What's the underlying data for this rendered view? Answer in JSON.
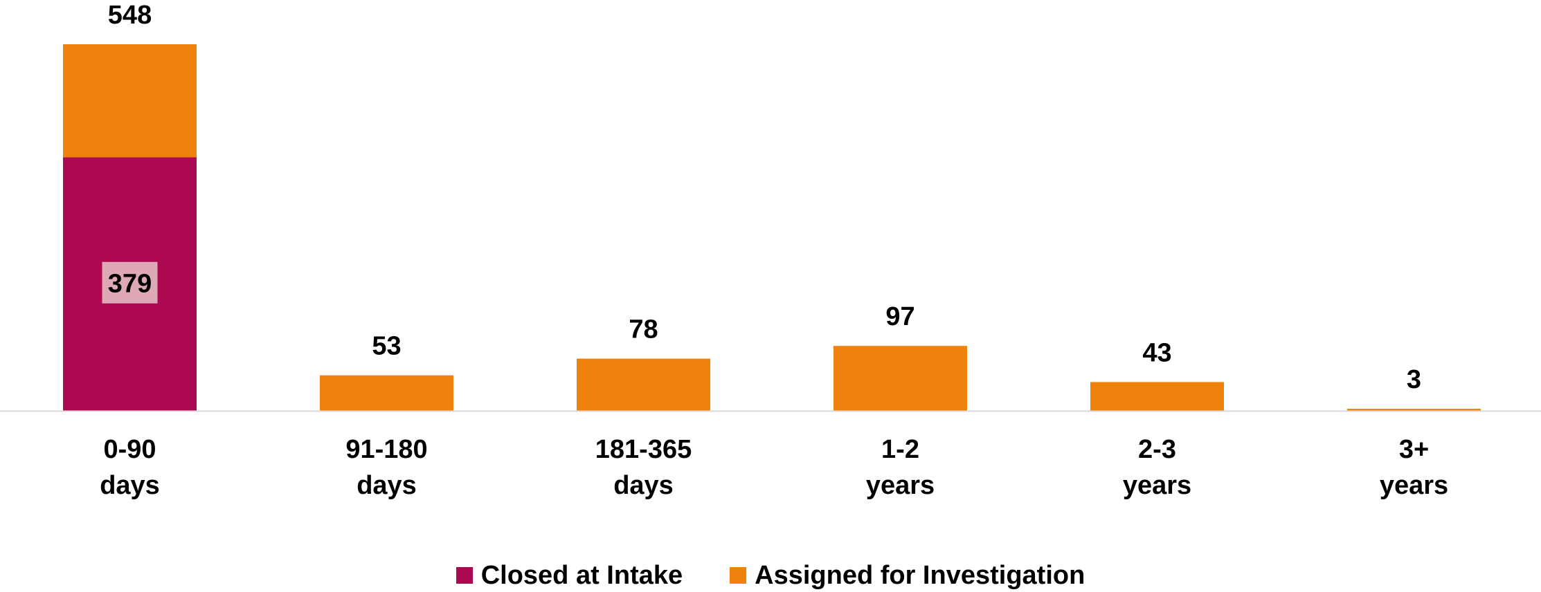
{
  "chart_data": {
    "type": "bar",
    "stacked": true,
    "categories": [
      [
        "0-90",
        "days"
      ],
      [
        "91-180",
        "days"
      ],
      [
        "181-365",
        "days"
      ],
      [
        "1-2",
        "years"
      ],
      [
        "2-3",
        "years"
      ],
      [
        "3+",
        "years"
      ]
    ],
    "series": [
      {
        "name": "Closed at Intake",
        "color": "#ad0951",
        "values": [
          379,
          0,
          0,
          0,
          0,
          0
        ]
      },
      {
        "name": "Assigned for Investigation",
        "color": "#ef810d",
        "values": [
          169,
          53,
          78,
          97,
          43,
          3
        ]
      }
    ],
    "totals": [
      548,
      53,
      78,
      97,
      43,
      3
    ],
    "inner_labels": [
      "379",
      null,
      null,
      null,
      null,
      null
    ],
    "ylim": [
      0,
      548
    ],
    "grid": false,
    "legend_position": "bottom"
  }
}
